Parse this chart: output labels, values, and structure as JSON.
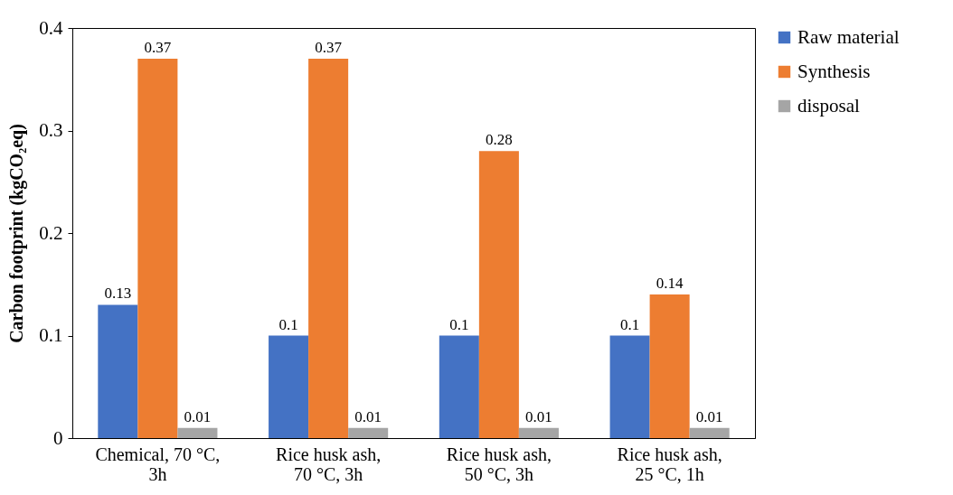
{
  "chart_data": {
    "type": "bar",
    "ylabel": "Carbon footprint (kgCO₂eq)",
    "categories": [
      "Chemical, 70 °C, 3h",
      "Rice husk ash, 70 °C, 3h",
      "Rice husk ash, 50 °C, 3h",
      "Rice husk ash, 25 °C, 1h"
    ],
    "series": [
      {
        "name": "Raw material",
        "color": "#4472c4",
        "values": [
          0.13,
          0.1,
          0.1,
          0.1
        ]
      },
      {
        "name": "Synthesis",
        "color": "#ed7d31",
        "values": [
          0.37,
          0.37,
          0.28,
          0.14
        ]
      },
      {
        "name": "disposal",
        "color": "#a5a5a5",
        "values": [
          0.01,
          0.01,
          0.01,
          0.01
        ]
      }
    ],
    "ylim": [
      0,
      0.4
    ],
    "yticks": [
      0,
      0.1,
      0.2,
      0.3,
      0.4
    ],
    "grid": false,
    "legend": "right",
    "data_labels": true
  }
}
